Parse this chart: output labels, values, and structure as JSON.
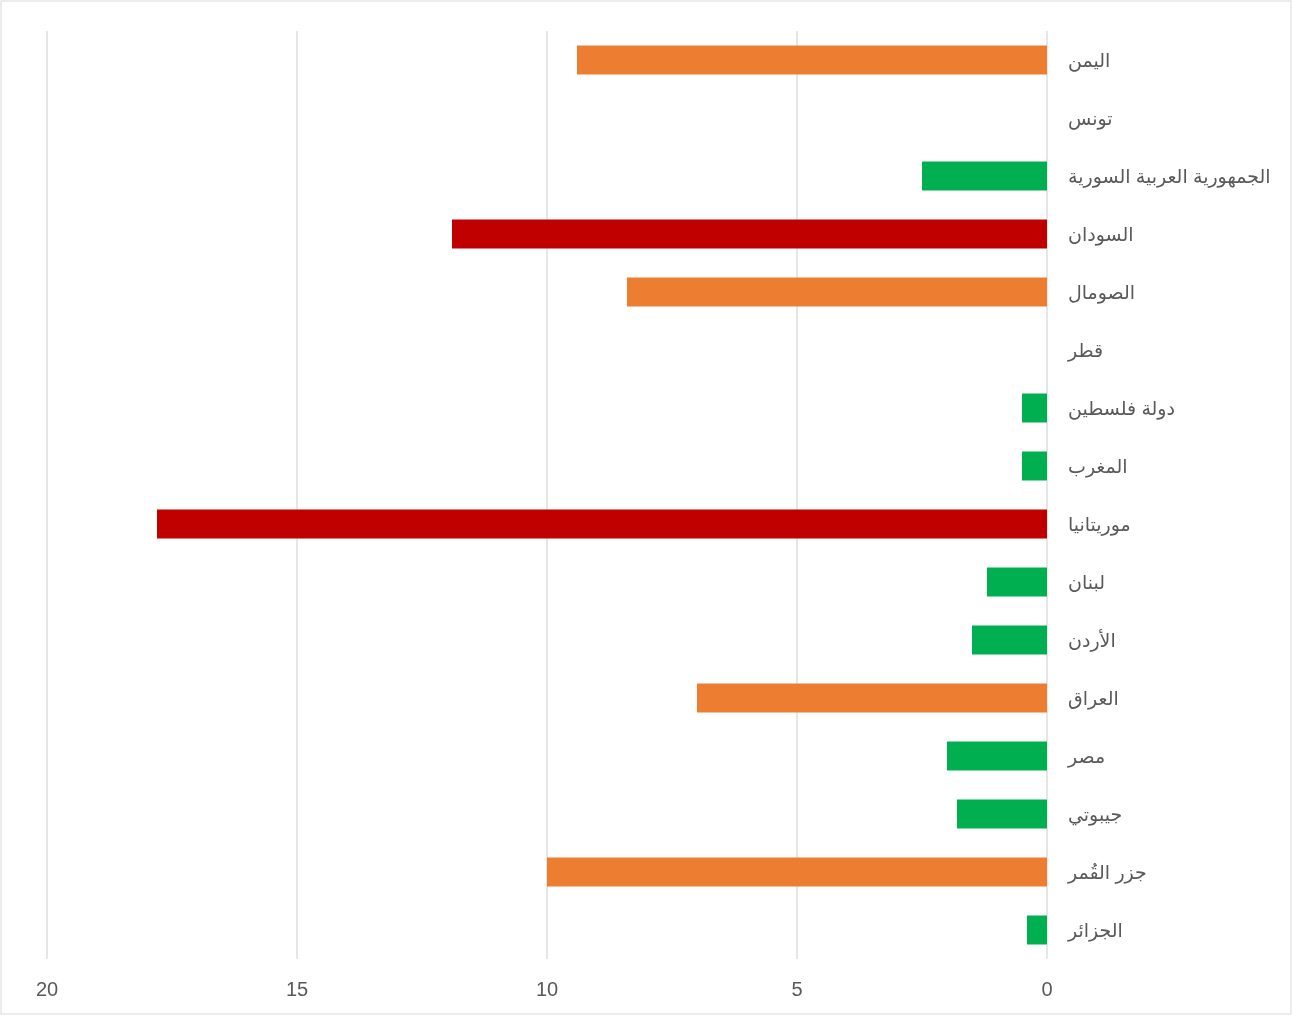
{
  "chart_data": {
    "type": "bar",
    "orientation": "horizontal",
    "categories": [
      "اليمن",
      "تونس",
      "الجمهورية العربية السورية",
      "السودان",
      "الصومال",
      "قطر",
      "دولة فلسطين",
      "المغرب",
      "موريتانيا",
      "لبنان",
      "الأردن",
      "العراق",
      "مصر",
      "جيبوتي",
      "جزر القُمر",
      "الجزائر"
    ],
    "values": [
      9.4,
      null,
      2.5,
      11.9,
      8.4,
      null,
      0.5,
      0.5,
      17.8,
      1.2,
      1.5,
      7.0,
      2.0,
      1.8,
      10.0,
      0.4
    ],
    "colors": [
      "#ed7d31",
      null,
      "#00b050",
      "#c00000",
      "#ed7d31",
      null,
      "#00b050",
      "#00b050",
      "#c00000",
      "#00b050",
      "#00b050",
      "#ed7d31",
      "#00b050",
      "#00b050",
      "#ed7d31",
      "#00b050"
    ],
    "xlim": [
      20,
      0
    ],
    "xticks": [
      20,
      15,
      10,
      5,
      0
    ],
    "grid": "x"
  }
}
